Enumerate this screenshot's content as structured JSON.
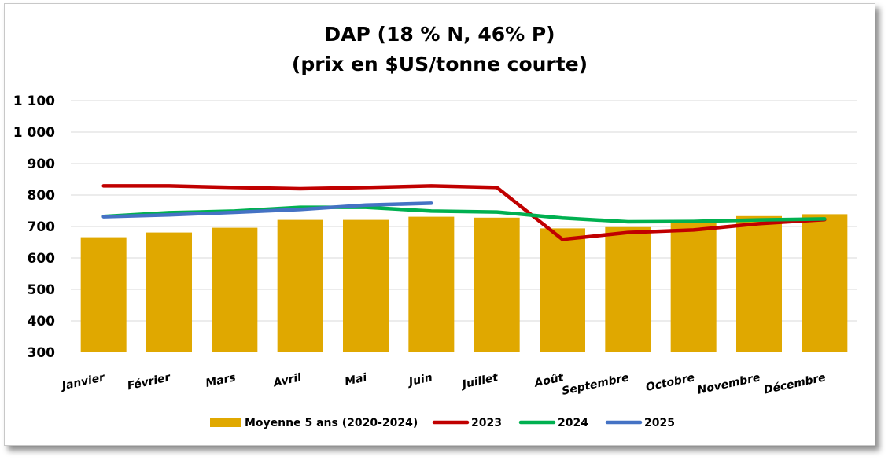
{
  "chart_data": {
    "type": "bar",
    "title_line1": "DAP (18 % N, 46% P)",
    "title_line2": "(prix en $US/tonne courte)",
    "categories": [
      "Janvier",
      "Février",
      "Mars",
      "Avril",
      "Mai",
      "Juin",
      "Juillet",
      "Août",
      "Septembre",
      "Octobre",
      "Novembre",
      "Décembre"
    ],
    "ylim": [
      300,
      1100
    ],
    "yticks": [
      300,
      400,
      500,
      600,
      700,
      800,
      900,
      1000,
      1100
    ],
    "ytick_labels": [
      "300",
      "400",
      "500",
      "600",
      "700",
      "800",
      "900",
      "1 000",
      "1 100"
    ],
    "grid": true,
    "legend_position": "bottom",
    "bar_series": {
      "name": "Moyenne 5 ans (2020-2024)",
      "color": "#E0A800",
      "values": [
        666,
        681,
        696,
        721,
        721,
        731,
        728,
        694,
        698,
        716,
        733,
        739
      ]
    },
    "line_series": [
      {
        "name": "2023",
        "color": "#C00000",
        "values": [
          829,
          829,
          824,
          820,
          824,
          829,
          824,
          659,
          681,
          689,
          709,
          722
        ]
      },
      {
        "name": "2024",
        "color": "#00B050",
        "values": [
          732,
          744,
          749,
          761,
          761,
          749,
          746,
          727,
          715,
          716,
          721,
          724
        ]
      },
      {
        "name": "2025",
        "color": "#4472C4",
        "values": [
          731,
          737,
          745,
          754,
          768,
          774,
          null,
          null,
          null,
          null,
          null,
          null
        ]
      }
    ]
  }
}
